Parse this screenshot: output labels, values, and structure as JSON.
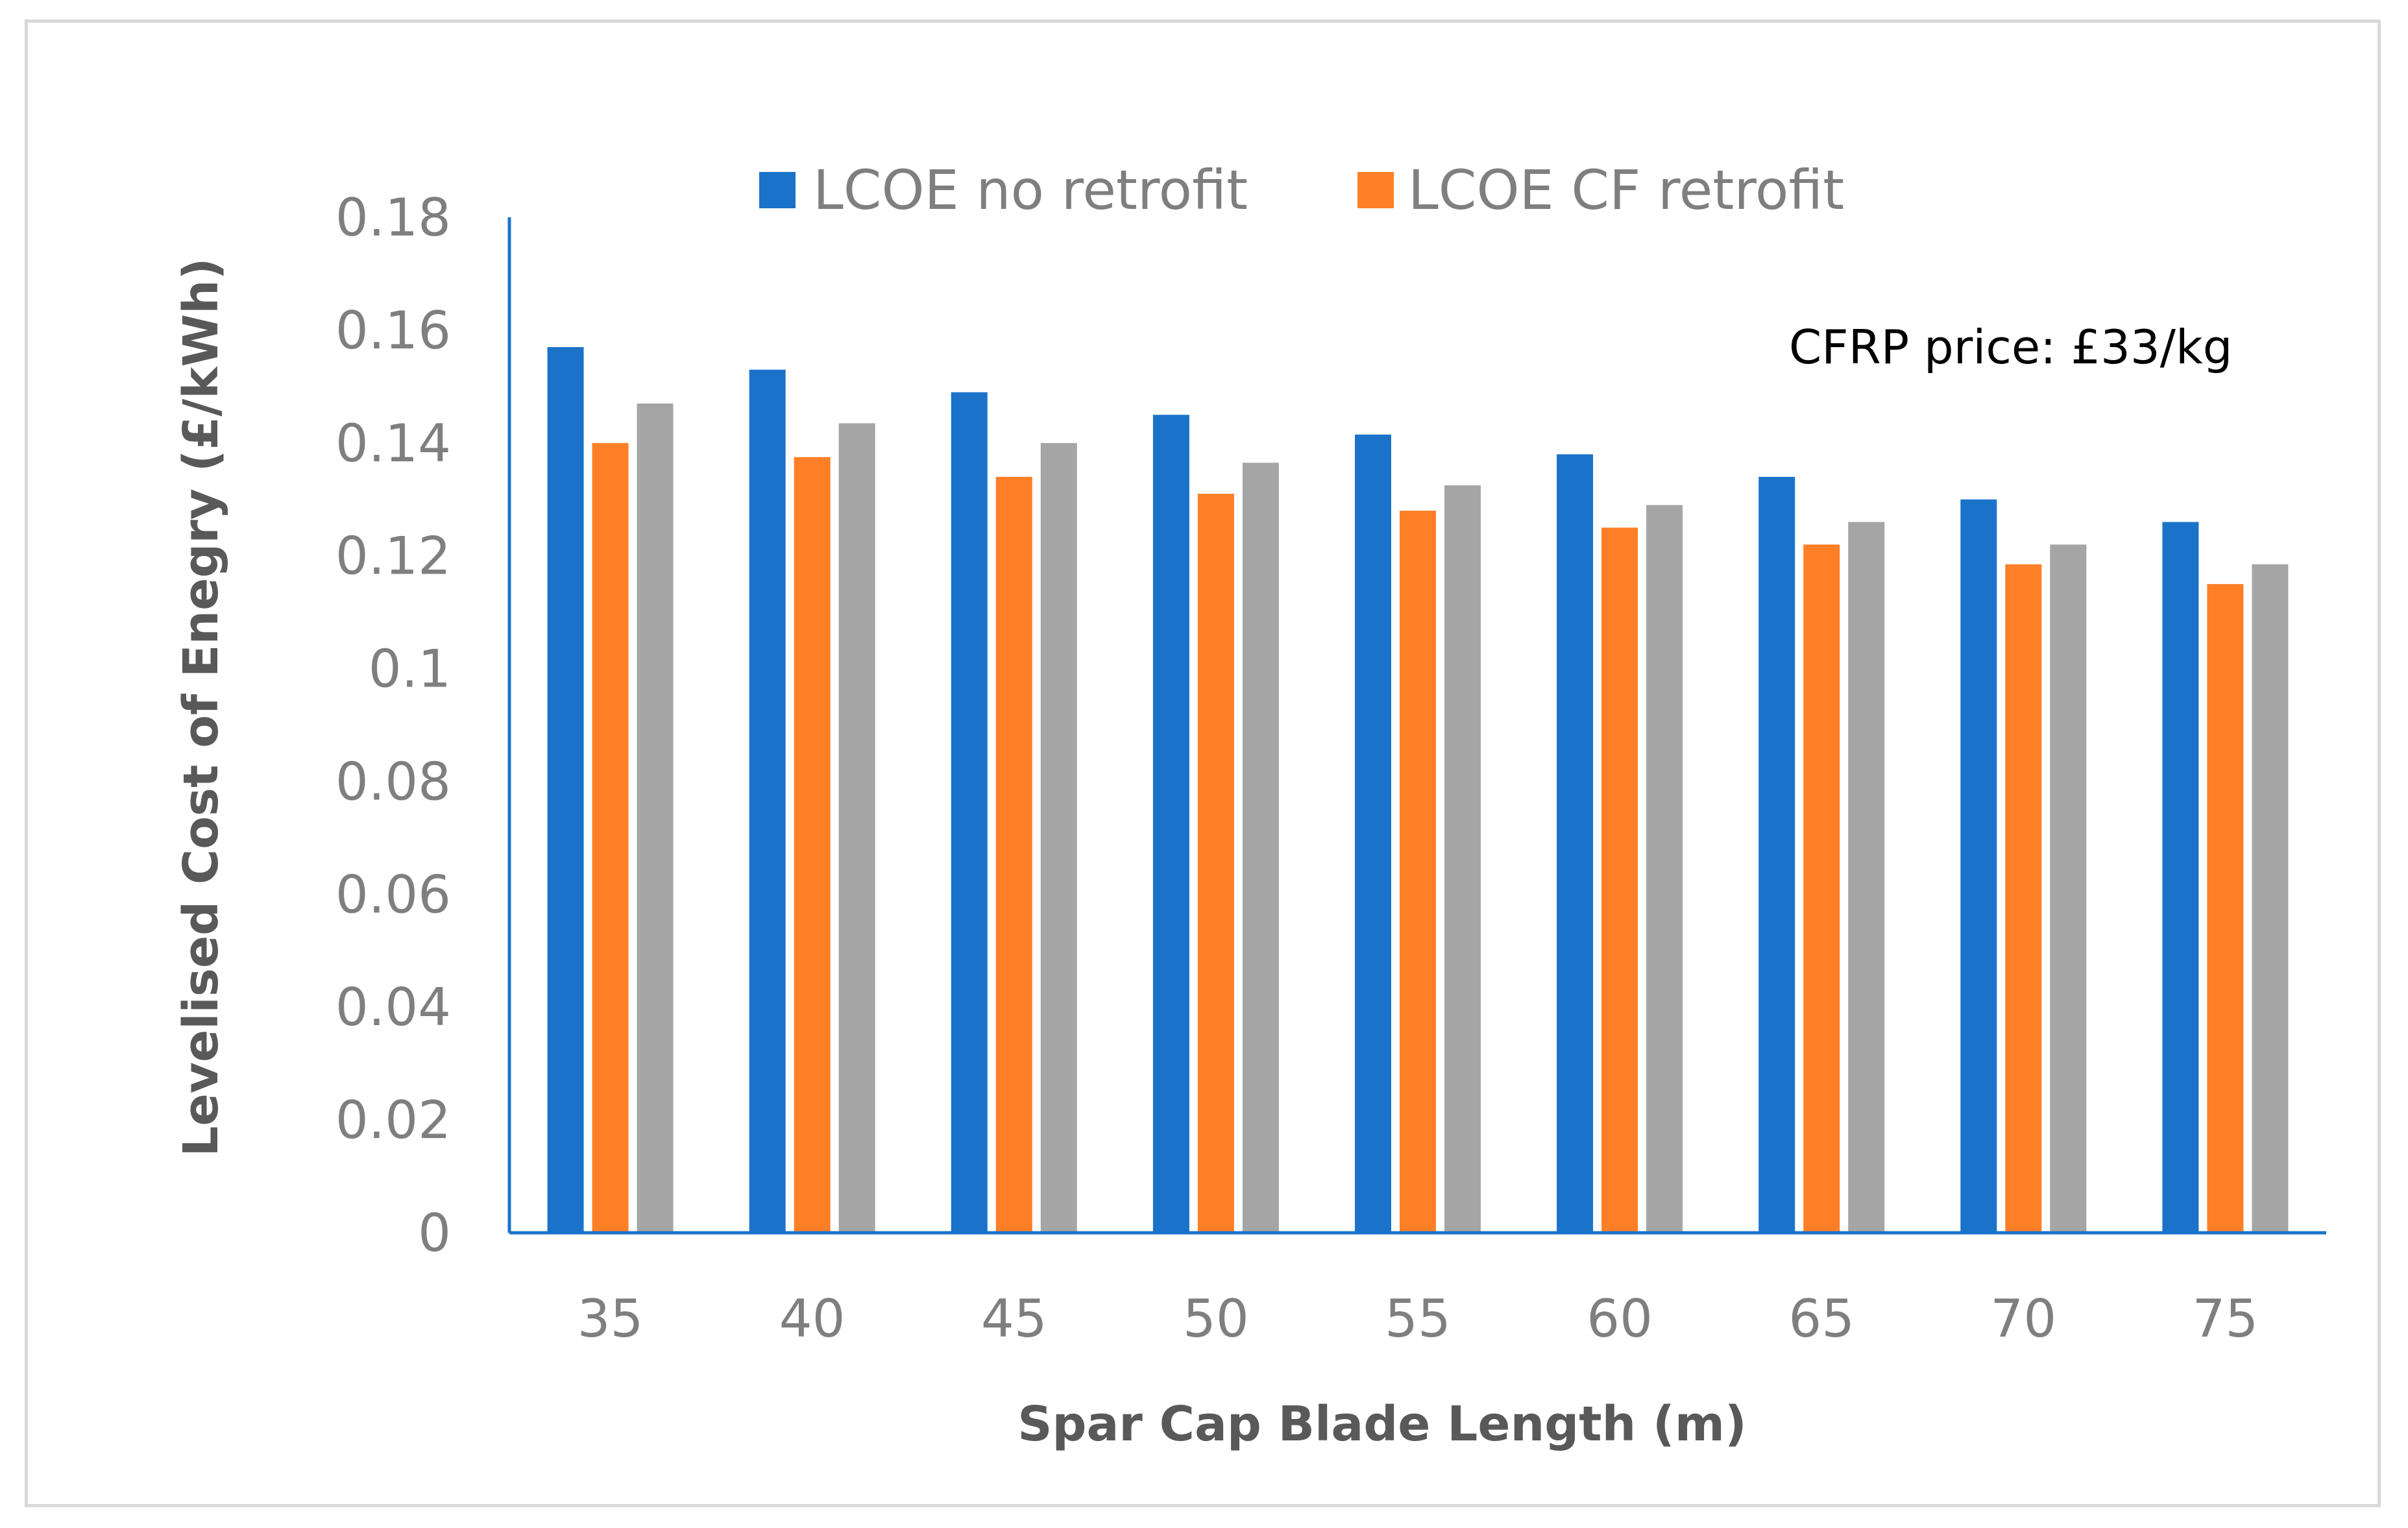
{
  "chart_data": {
    "type": "bar",
    "title": "",
    "xlabel": "Spar Cap Blade Length (m)",
    "ylabel": "Levelised Cost of Enegry (£/kWh)",
    "categories": [
      "35",
      "40",
      "45",
      "50",
      "55",
      "60",
      "65",
      "70",
      "75"
    ],
    "ylim": [
      0,
      0.18
    ],
    "yticks": [
      "0",
      "0.02",
      "0.04",
      "0.06",
      "0.08",
      "0.1",
      "0.12",
      "0.14",
      "0.16",
      "0.18"
    ],
    "grid": false,
    "legend_position": "top",
    "annotation": "CFRP price: £33/kg",
    "series": [
      {
        "name": "LCOE no retrofit",
        "color": "#1a73c9",
        "values": [
          0.157,
          0.153,
          0.149,
          0.145,
          0.1415,
          0.138,
          0.134,
          0.13,
          0.126
        ]
      },
      {
        "name": "LCOE CF retrofit",
        "color": "#ff7f27",
        "values": [
          0.14,
          0.1375,
          0.134,
          0.131,
          0.128,
          0.125,
          0.122,
          0.1185,
          0.115
        ]
      },
      {
        "color": "#a5a5a5",
        "values": [
          0.147,
          0.1435,
          0.14,
          0.1365,
          0.1325,
          0.129,
          0.126,
          0.122,
          0.1185
        ]
      }
    ]
  }
}
